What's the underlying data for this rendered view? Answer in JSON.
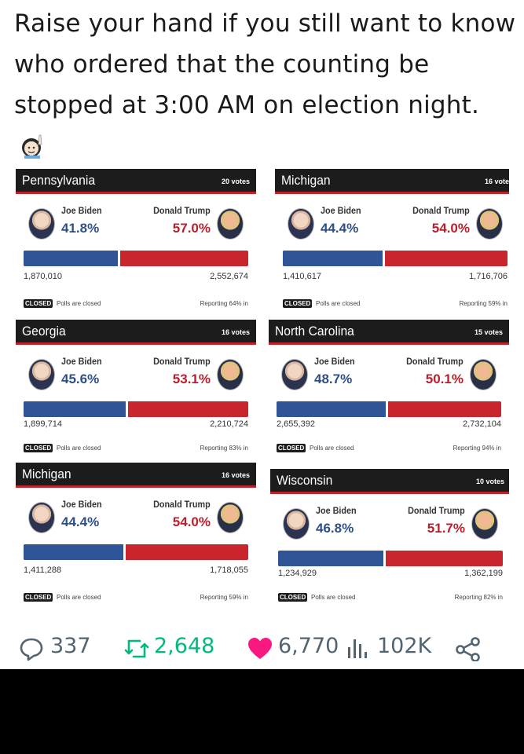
{
  "tweet": {
    "text": "Raise your hand if you still want to know who ordered that the counting be stopped at 3:00 AM on election night.",
    "emoji": "person-raising-hand-emoji"
  },
  "cards": [
    {
      "state": "Pennsylvania",
      "votes": "20 votes",
      "biden_name": "Joe Biden",
      "biden_pct": "41.8%",
      "trump_name": "Donald Trump",
      "trump_pct": "57.0%",
      "biden_share": 0.418,
      "biden_count": "1,870,010",
      "trump_count": "2,552,674",
      "closed": "CLOSED",
      "status": "Polls are closed",
      "reporting": "Reporting 64% in"
    },
    {
      "state": "Michigan",
      "votes": "16 vote",
      "biden_name": "Joe Biden",
      "biden_pct": "44.4%",
      "trump_name": "Donald Trump",
      "trump_pct": "54.0%",
      "biden_share": 0.444,
      "biden_count": "1,410,617",
      "trump_count": "1,716,706",
      "closed": "CLOSED",
      "status": "Polls are closed",
      "reporting": "Reporting 59% in"
    },
    {
      "state": "Georgia",
      "votes": "16 votes",
      "biden_name": "Joe Biden",
      "biden_pct": "45.6%",
      "trump_name": "Donald Trump",
      "trump_pct": "53.1%",
      "biden_share": 0.456,
      "biden_count": "1,899,714",
      "trump_count": "2,210,724",
      "closed": "CLOSED",
      "status": "Polls are closed",
      "reporting": "Reporting 83% in"
    },
    {
      "state": "North Carolina",
      "votes": "15 votes",
      "biden_name": "Joe Biden",
      "biden_pct": "48.7%",
      "trump_name": "Donald Trump",
      "trump_pct": "50.1%",
      "biden_share": 0.487,
      "biden_count": "2,655,392",
      "trump_count": "2,732,104",
      "closed": "CLOSED",
      "status": "Polls are closed",
      "reporting": "Reporting 94% in"
    },
    {
      "state": "Michigan",
      "votes": "16 votes",
      "biden_name": "Joe Biden",
      "biden_pct": "44.4%",
      "trump_name": "Donald Trump",
      "trump_pct": "54.0%",
      "biden_share": 0.444,
      "biden_count": "1,411,288",
      "trump_count": "1,718,055",
      "closed": "CLOSED",
      "status": "Polls are closed",
      "reporting": "Reporting 59% in"
    },
    {
      "state": "Wisconsin",
      "votes": "10 votes",
      "biden_name": "Joe Biden",
      "biden_pct": "46.8%",
      "trump_name": "Donald Trump",
      "trump_pct": "51.7%",
      "biden_share": 0.468,
      "biden_count": "1,234,929",
      "trump_count": "1,362,199",
      "closed": "CLOSED",
      "status": "Polls are closed",
      "reporting": "Reporting 82% in"
    }
  ],
  "actions": {
    "replies": "337",
    "reposts": "2,648",
    "likes": "6,770",
    "views": "102K"
  },
  "colors": {
    "biden_blue": "#2f5596",
    "trump_red": "#c8252c",
    "repost_green": "#00ba7c",
    "like_pink": "#f91880"
  }
}
